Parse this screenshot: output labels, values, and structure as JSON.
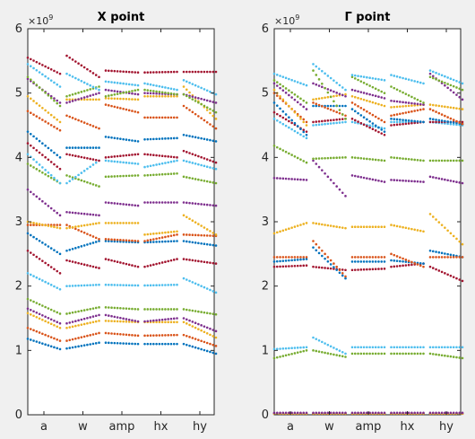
{
  "chart_data": [
    {
      "type": "scatter",
      "title": "X point",
      "exponent_label": "×10",
      "exponent_power": "9",
      "xlabel": "",
      "ylabel": "",
      "categories": [
        "a",
        "w",
        "amp",
        "hx",
        "hy"
      ],
      "ylim": [
        0,
        6
      ],
      "yticks": [
        "0",
        "1",
        "2",
        "3",
        "4",
        "5",
        "6"
      ],
      "grid": false,
      "colors": [
        "#0072bd",
        "#d95319",
        "#edb120",
        "#7e2f8e",
        "#77ac30",
        "#4dbeee",
        "#a2142f"
      ],
      "series": [
        {
          "values": [
            [
              1.18,
              1.02
            ],
            [
              1.03,
              1.12
            ],
            [
              1.12,
              1.1
            ],
            [
              1.1,
              1.1
            ],
            [
              1.1,
              0.95
            ]
          ]
        },
        {
          "values": [
            [
              1.35,
              1.15
            ],
            [
              1.15,
              1.27
            ],
            [
              1.27,
              1.23
            ],
            [
              1.23,
              1.24
            ],
            [
              1.24,
              1.07
            ]
          ]
        },
        {
          "values": [
            [
              1.58,
              1.35
            ],
            [
              1.35,
              1.46
            ],
            [
              1.46,
              1.44
            ],
            [
              1.44,
              1.44
            ],
            [
              1.44,
              1.2
            ]
          ]
        },
        {
          "values": [
            [
              1.65,
              1.42
            ],
            [
              1.42,
              1.55
            ],
            [
              1.55,
              1.45
            ],
            [
              1.45,
              1.5
            ],
            [
              1.5,
              1.3
            ]
          ]
        },
        {
          "values": [
            [
              1.8,
              1.57
            ],
            [
              1.57,
              1.67
            ],
            [
              1.67,
              1.64
            ],
            [
              1.64,
              1.64
            ],
            [
              1.64,
              1.56
            ]
          ]
        },
        {
          "values": [
            [
              2.2,
              1.95
            ],
            [
              2.0,
              2.02
            ],
            [
              2.02,
              2.01
            ],
            [
              2.01,
              2.02
            ],
            [
              2.12,
              1.9
            ]
          ]
        },
        {
          "values": [
            [
              2.55,
              2.2
            ],
            [
              2.4,
              2.28
            ],
            [
              2.42,
              2.3
            ],
            [
              2.3,
              2.42
            ],
            [
              2.42,
              2.35
            ]
          ]
        },
        {
          "values": [
            [
              2.82,
              2.5
            ],
            [
              2.55,
              2.7
            ],
            [
              2.7,
              2.68
            ],
            [
              2.68,
              2.7
            ],
            [
              2.7,
              2.63
            ]
          ]
        },
        {
          "values": [
            [
              2.95,
              2.95
            ],
            [
              2.95,
              2.73
            ],
            [
              2.73,
              2.7
            ],
            [
              2.7,
              2.8
            ],
            [
              2.8,
              2.78
            ]
          ]
        },
        {
          "values": [
            [
              3.0,
              2.9
            ],
            [
              2.9,
              2.98
            ],
            [
              2.98,
              2.98
            ],
            [
              2.8,
              2.85
            ],
            [
              3.1,
              2.8
            ]
          ]
        },
        {
          "values": [
            [
              3.5,
              3.1
            ],
            [
              3.15,
              3.1
            ],
            [
              3.3,
              3.25
            ],
            [
              3.3,
              3.3
            ],
            [
              3.3,
              3.25
            ]
          ]
        },
        {
          "values": [
            [
              3.9,
              3.6
            ],
            [
              3.72,
              3.55
            ],
            [
              3.7,
              3.72
            ],
            [
              3.72,
              3.75
            ],
            [
              3.7,
              3.6
            ]
          ]
        },
        {
          "values": [
            [
              4.05,
              3.6
            ],
            [
              3.6,
              3.95
            ],
            [
              3.95,
              3.9
            ],
            [
              3.85,
              3.95
            ],
            [
              3.95,
              3.82
            ]
          ]
        },
        {
          "values": [
            [
              4.22,
              3.82
            ],
            [
              4.05,
              3.95
            ],
            [
              4.0,
              4.05
            ],
            [
              4.05,
              4.0
            ],
            [
              4.1,
              3.92
            ]
          ]
        },
        {
          "values": [
            [
              4.4,
              4.0
            ],
            [
              4.15,
              4.15
            ],
            [
              4.32,
              4.25
            ],
            [
              4.28,
              4.3
            ],
            [
              4.35,
              4.25
            ]
          ]
        },
        {
          "values": [
            [
              4.72,
              4.42
            ],
            [
              4.65,
              4.45
            ],
            [
              4.82,
              4.7
            ],
            [
              4.62,
              4.62
            ],
            [
              4.8,
              4.45
            ]
          ]
        },
        {
          "values": [
            [
              4.95,
              4.55
            ],
            [
              4.9,
              4.9
            ],
            [
              4.92,
              4.9
            ],
            [
              4.95,
              4.95
            ],
            [
              5.1,
              4.6
            ]
          ]
        },
        {
          "values": [
            [
              5.22,
              4.85
            ],
            [
              4.85,
              5.0
            ],
            [
              5.05,
              4.98
            ],
            [
              5.0,
              4.98
            ],
            [
              4.98,
              4.85
            ]
          ]
        },
        {
          "values": [
            [
              5.25,
              4.8
            ],
            [
              4.95,
              5.1
            ],
            [
              4.95,
              5.05
            ],
            [
              5.05,
              4.98
            ],
            [
              4.98,
              4.7
            ]
          ]
        },
        {
          "values": [
            [
              5.45,
              5.1
            ],
            [
              5.3,
              5.05
            ],
            [
              5.18,
              5.12
            ],
            [
              5.15,
              5.05
            ],
            [
              5.2,
              4.98
            ]
          ]
        },
        {
          "values": [
            [
              5.55,
              5.3
            ],
            [
              5.58,
              5.25
            ],
            [
              5.35,
              5.32
            ],
            [
              5.32,
              5.33
            ],
            [
              5.33,
              5.33
            ]
          ]
        }
      ]
    },
    {
      "type": "scatter",
      "title": "Γ point",
      "exponent_label": "×10",
      "exponent_power": "9",
      "xlabel": "",
      "ylabel": "",
      "categories": [
        "a",
        "w",
        "amp",
        "hx",
        "hy"
      ],
      "ylim": [
        0,
        6
      ],
      "yticks": [
        "0",
        "1",
        "2",
        "3",
        "4",
        "5",
        "6"
      ],
      "grid": false,
      "colors": [
        "#0072bd",
        "#d95319",
        "#edb120",
        "#7e2f8e",
        "#77ac30",
        "#4dbeee",
        "#a2142f"
      ],
      "series": [
        {
          "values": [
            [
              0.0,
              0.0
            ],
            [
              0.0,
              0.0
            ],
            [
              0.0,
              0.0
            ],
            [
              0.0,
              0.0
            ],
            [
              0.0,
              0.0
            ]
          ]
        },
        {
          "values": [
            [
              0.01,
              0.01
            ],
            [
              0.01,
              0.01
            ],
            [
              0.01,
              0.01
            ],
            [
              0.01,
              0.01
            ],
            [
              0.01,
              0.01
            ]
          ]
        },
        {
          "values": [
            [
              0.02,
              0.02
            ],
            [
              0.02,
              0.02
            ],
            [
              0.02,
              0.02
            ],
            [
              0.02,
              0.02
            ],
            [
              0.02,
              0.02
            ]
          ]
        },
        {
          "values": [
            [
              0.03,
              0.03
            ],
            [
              0.03,
              0.03
            ],
            [
              0.03,
              0.03
            ],
            [
              0.03,
              0.03
            ],
            [
              0.03,
              0.03
            ]
          ]
        },
        {
          "values": [
            [
              0.88,
              1.0
            ],
            [
              1.0,
              0.9
            ],
            [
              0.95,
              0.95
            ],
            [
              0.95,
              0.95
            ],
            [
              0.95,
              0.88
            ]
          ]
        },
        {
          "values": [
            [
              1.02,
              1.05
            ],
            [
              1.2,
              0.95
            ],
            [
              1.05,
              1.05
            ],
            [
              1.05,
              1.05
            ],
            [
              1.05,
              1.05
            ]
          ]
        },
        {
          "values": [
            [
              2.3,
              2.32
            ],
            [
              2.3,
              2.25
            ],
            [
              2.25,
              2.27
            ],
            [
              2.3,
              2.35
            ],
            [
              2.3,
              2.08
            ]
          ]
        },
        {
          "values": [
            [
              2.38,
              2.42
            ],
            [
              2.6,
              2.12
            ],
            [
              2.38,
              2.38
            ],
            [
              2.4,
              2.35
            ],
            [
              2.55,
              2.45
            ]
          ]
        },
        {
          "values": [
            [
              2.45,
              2.45
            ],
            [
              2.7,
              2.15
            ],
            [
              2.45,
              2.45
            ],
            [
              2.5,
              2.3
            ],
            [
              2.45,
              2.45
            ]
          ]
        },
        {
          "values": [
            [
              2.82,
              2.98
            ],
            [
              2.98,
              2.9
            ],
            [
              2.92,
              2.92
            ],
            [
              2.95,
              2.85
            ],
            [
              3.12,
              2.65
            ]
          ]
        },
        {
          "values": [
            [
              3.68,
              3.65
            ],
            [
              3.95,
              3.4
            ],
            [
              3.72,
              3.62
            ],
            [
              3.65,
              3.62
            ],
            [
              3.7,
              3.6
            ]
          ]
        },
        {
          "values": [
            [
              4.18,
              3.92
            ],
            [
              3.98,
              4.0
            ],
            [
              4.0,
              3.95
            ],
            [
              4.0,
              3.95
            ],
            [
              3.95,
              3.95
            ]
          ]
        },
        {
          "values": [
            [
              4.6,
              4.3
            ],
            [
              4.5,
              4.55
            ],
            [
              4.55,
              4.45
            ],
            [
              4.55,
              4.55
            ],
            [
              4.55,
              4.5
            ]
          ]
        },
        {
          "values": [
            [
              4.7,
              4.4
            ],
            [
              4.55,
              4.6
            ],
            [
              4.6,
              4.35
            ],
            [
              4.5,
              4.55
            ],
            [
              4.55,
              4.55
            ]
          ]
        },
        {
          "values": [
            [
              4.85,
              4.35
            ],
            [
              4.8,
              4.8
            ],
            [
              4.75,
              4.4
            ],
            [
              4.6,
              4.55
            ],
            [
              4.6,
              4.52
            ]
          ]
        },
        {
          "values": [
            [
              5.0,
              4.55
            ],
            [
              4.85,
              4.65
            ],
            [
              4.85,
              4.55
            ],
            [
              4.65,
              4.75
            ],
            [
              4.75,
              4.52
            ]
          ]
        },
        {
          "values": [
            [
              5.05,
              4.5
            ],
            [
              4.9,
              4.98
            ],
            [
              4.95,
              4.8
            ],
            [
              4.78,
              4.82
            ],
            [
              4.82,
              4.75
            ]
          ]
        },
        {
          "values": [
            [
              5.15,
              4.75
            ],
            [
              5.15,
              4.95
            ],
            [
              5.05,
              4.92
            ],
            [
              4.88,
              4.82
            ],
            [
              5.3,
              4.9
            ]
          ]
        },
        {
          "values": [
            [
              5.2,
              4.85
            ],
            [
              5.35,
              4.6
            ],
            [
              5.25,
              5.0
            ],
            [
              5.1,
              4.85
            ],
            [
              5.25,
              5.05
            ]
          ]
        },
        {
          "values": [
            [
              5.3,
              5.12
            ],
            [
              5.45,
              5.05
            ],
            [
              5.28,
              5.2
            ],
            [
              5.28,
              5.15
            ],
            [
              5.35,
              5.15
            ]
          ]
        }
      ]
    }
  ]
}
